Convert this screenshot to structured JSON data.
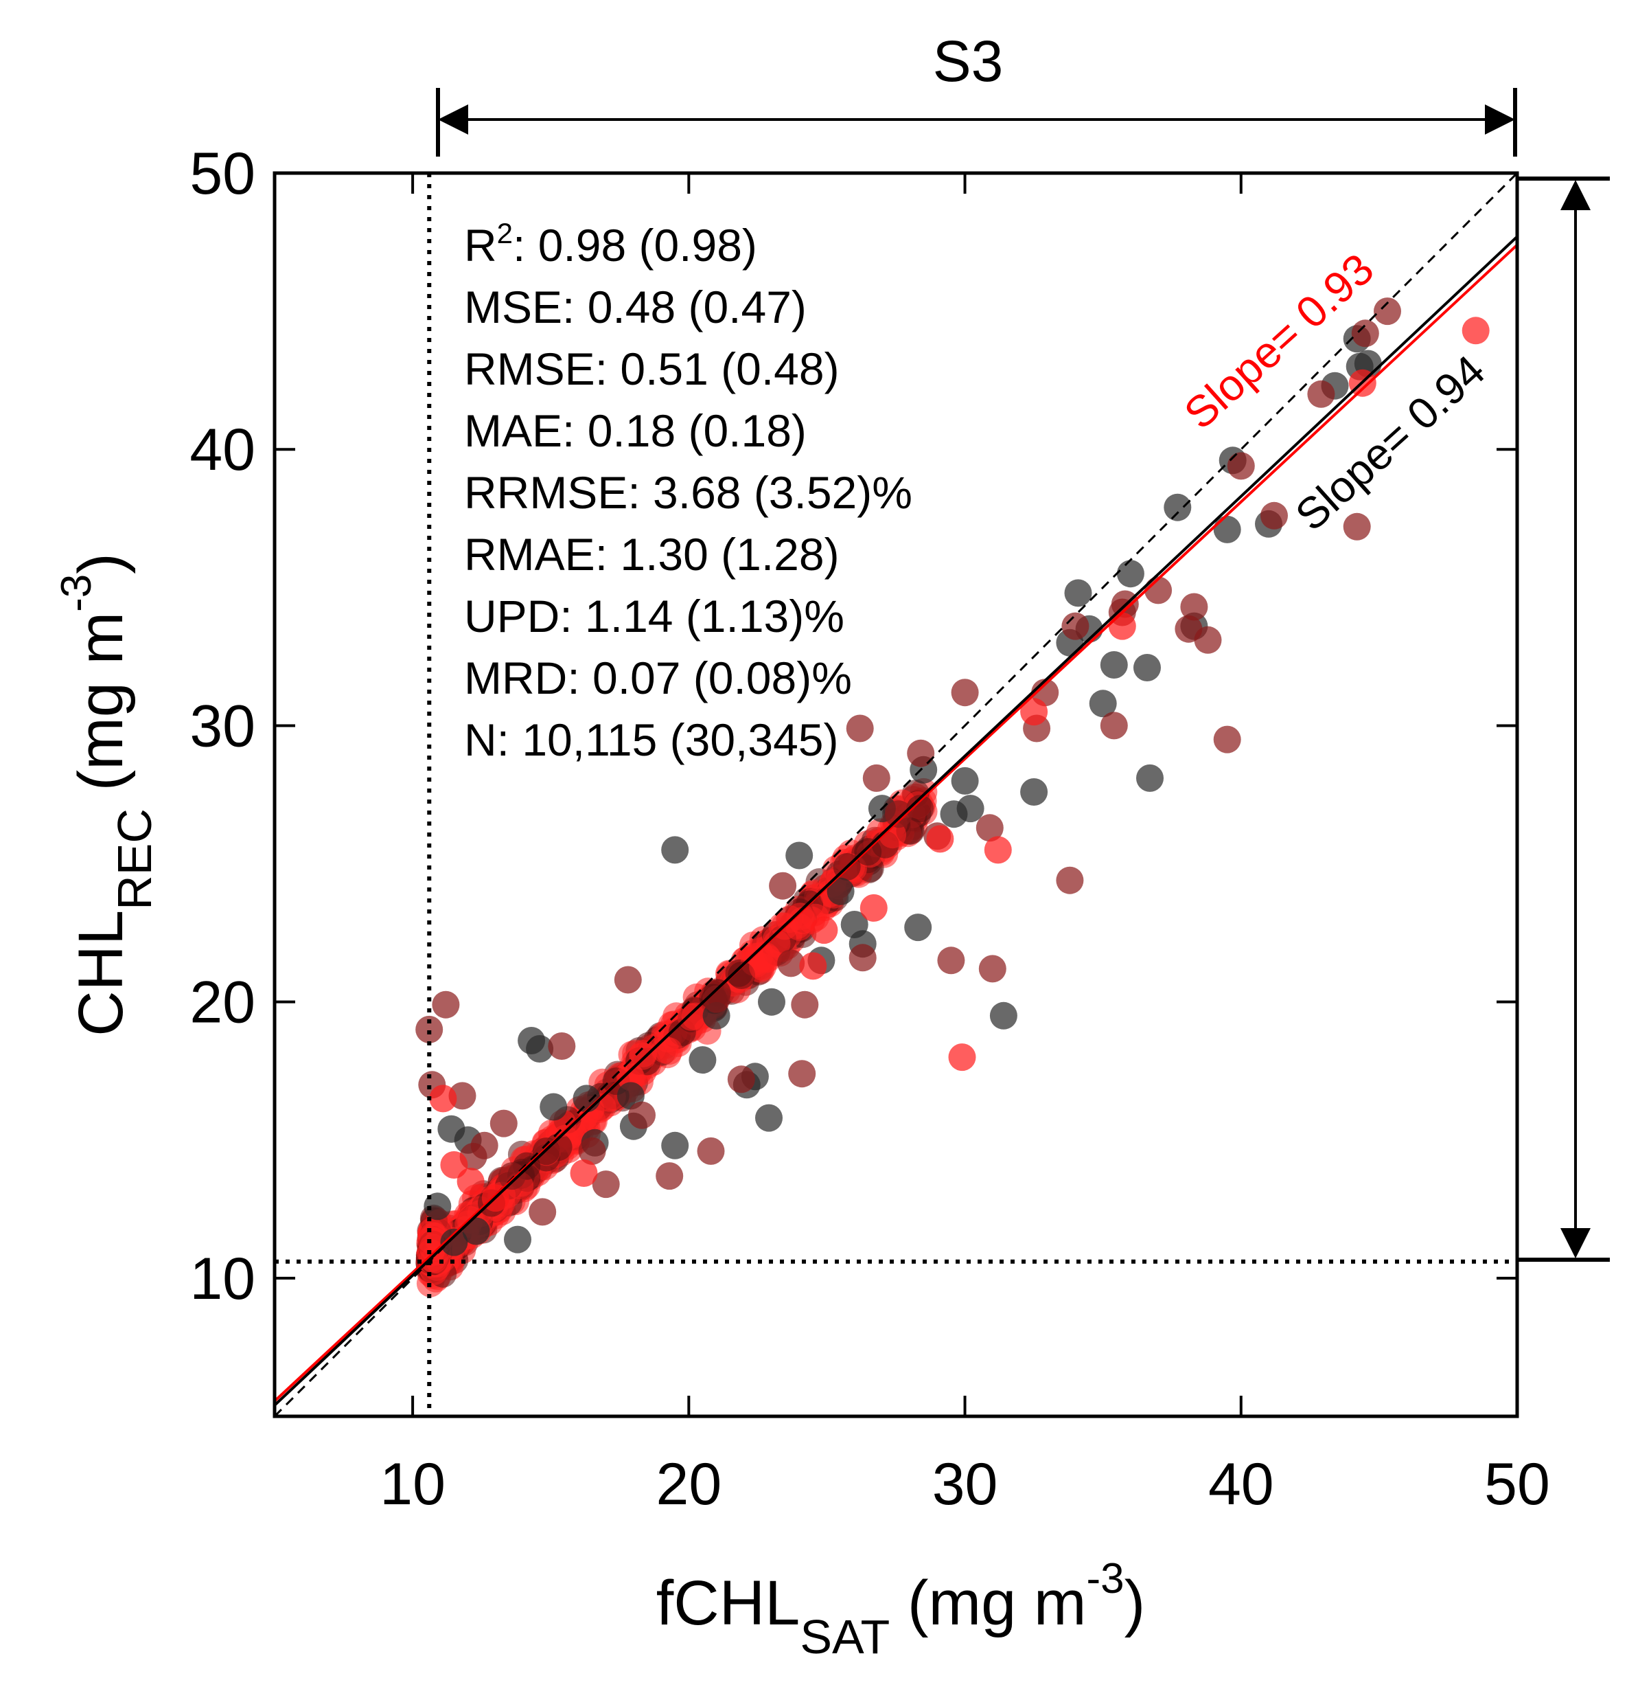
{
  "chart_data": {
    "type": "scatter",
    "top_label": "S3",
    "xlabel": {
      "main": "fCHL",
      "sub": "SAT",
      "units_prefix": " (mg m",
      "units_sup": "-3",
      "units_suffix": ")"
    },
    "ylabel": {
      "main": "CHL",
      "sub": "REC",
      "units_prefix": " (mg m",
      "units_sup": "-3",
      "units_suffix": ")"
    },
    "xlim": [
      5,
      50
    ],
    "ylim": [
      5,
      50
    ],
    "xticks": [
      10,
      20,
      30,
      40,
      50
    ],
    "yticks": [
      10,
      20,
      30,
      40,
      50
    ],
    "tick_labels_x": [
      "10",
      "20",
      "30",
      "40",
      "50"
    ],
    "tick_labels_y": [
      "10",
      "20",
      "30",
      "40",
      "50"
    ],
    "threshold": 10.6,
    "stats": [
      {
        "key": "R",
        "sup": "2",
        "text": ": 0.98 (0.98)"
      },
      {
        "key": "MSE",
        "sup": "",
        "text": ": 0.48 (0.47)"
      },
      {
        "key": "RMSE",
        "sup": "",
        "text": ": 0.51 (0.48)"
      },
      {
        "key": "MAE",
        "sup": "",
        "text": ": 0.18 (0.18)"
      },
      {
        "key": "RRMSE",
        "sup": "",
        "text": ": 3.68 (3.52)%"
      },
      {
        "key": "RMAE",
        "sup": "",
        "text": ": 1.30 (1.28)"
      },
      {
        "key": "UPD",
        "sup": "",
        "text": ": 1.14 (1.13)%"
      },
      {
        "key": "MRD",
        "sup": "",
        "text": ": 0.07 (0.08)%"
      },
      {
        "key": "N",
        "sup": "",
        "text": ":  10,115 (30,345)"
      }
    ],
    "fit_lines": [
      {
        "label": "Slope= 0.93",
        "slope": 0.93,
        "intercept": 0.9,
        "color": "#ff0000"
      },
      {
        "label": "Slope= 0.94",
        "slope": 0.94,
        "intercept": 0.7,
        "color": "#000000"
      }
    ],
    "one_to_one": true,
    "series": [
      {
        "color": "#2a2a2a",
        "points": [
          [
            14.3,
            18.6
          ],
          [
            14.6,
            18.3
          ],
          [
            19.5,
            25.5
          ],
          [
            24.0,
            25.3
          ],
          [
            26.0,
            22.8
          ],
          [
            26.3,
            22.1
          ],
          [
            28.3,
            22.7
          ],
          [
            29.6,
            26.8
          ],
          [
            30.0,
            28.0
          ],
          [
            30.2,
            27.0
          ],
          [
            31.4,
            19.5
          ],
          [
            32.5,
            27.6
          ],
          [
            35.0,
            30.8
          ],
          [
            35.4,
            32.2
          ],
          [
            36.6,
            32.1
          ],
          [
            36.7,
            28.1
          ],
          [
            37.7,
            37.9
          ],
          [
            38.3,
            33.6
          ],
          [
            39.5,
            37.1
          ],
          [
            39.7,
            39.6
          ],
          [
            43.4,
            42.3
          ],
          [
            44.2,
            44.0
          ],
          [
            44.3,
            43.0
          ],
          [
            44.6,
            43.1
          ],
          [
            34.1,
            34.8
          ],
          [
            34.5,
            33.5
          ],
          [
            33.8,
            33.0
          ],
          [
            23.0,
            20.0
          ],
          [
            22.4,
            17.3
          ],
          [
            22.1,
            17.0
          ],
          [
            22.9,
            15.8
          ],
          [
            19.5,
            14.8
          ],
          [
            17.9,
            16.6
          ],
          [
            18.0,
            15.5
          ],
          [
            16.3,
            16.5
          ],
          [
            15.1,
            16.2
          ],
          [
            12.0,
            15.0
          ],
          [
            11.4,
            15.4
          ],
          [
            10.9,
            12.6
          ],
          [
            11.5,
            11.3
          ],
          [
            12.3,
            11.7
          ],
          [
            13.8,
            11.4
          ],
          [
            16.6,
            14.9
          ],
          [
            27.0,
            27.0
          ],
          [
            28.5,
            28.4
          ],
          [
            25.5,
            24.0
          ],
          [
            24.8,
            21.5
          ],
          [
            36.0,
            35.5
          ],
          [
            41.0,
            37.3
          ],
          [
            21.0,
            19.5
          ],
          [
            20.5,
            17.9
          ]
        ]
      },
      {
        "color": "#8a1a1a",
        "points": [
          [
            10.6,
            19.0
          ],
          [
            10.7,
            17.0
          ],
          [
            11.2,
            19.9
          ],
          [
            11.8,
            16.6
          ],
          [
            12.2,
            14.4
          ],
          [
            13.3,
            15.6
          ],
          [
            13.6,
            13.7
          ],
          [
            14.7,
            12.4
          ],
          [
            16.5,
            14.6
          ],
          [
            17.0,
            13.4
          ],
          [
            19.3,
            13.7
          ],
          [
            20.8,
            14.6
          ],
          [
            21.9,
            17.2
          ],
          [
            24.1,
            17.4
          ],
          [
            24.2,
            19.9
          ],
          [
            26.3,
            21.6
          ],
          [
            26.2,
            29.9
          ],
          [
            27.6,
            26.8
          ],
          [
            29.0,
            26.0
          ],
          [
            29.5,
            21.5
          ],
          [
            30.9,
            26.3
          ],
          [
            31.0,
            21.2
          ],
          [
            32.6,
            29.9
          ],
          [
            33.8,
            24.4
          ],
          [
            35.4,
            30.0
          ],
          [
            37.0,
            34.9
          ],
          [
            38.1,
            33.5
          ],
          [
            38.3,
            34.3
          ],
          [
            38.8,
            33.1
          ],
          [
            39.5,
            29.5
          ],
          [
            40.0,
            39.4
          ],
          [
            41.2,
            37.6
          ],
          [
            44.2,
            37.2
          ],
          [
            42.9,
            42.0
          ],
          [
            44.5,
            44.2
          ],
          [
            45.3,
            45.0
          ],
          [
            35.7,
            34.1
          ],
          [
            34.0,
            33.6
          ],
          [
            32.9,
            31.2
          ],
          [
            28.4,
            29.0
          ],
          [
            23.7,
            21.4
          ],
          [
            23.4,
            24.2
          ],
          [
            17.8,
            20.8
          ],
          [
            15.4,
            18.4
          ],
          [
            12.6,
            14.8
          ],
          [
            18.3,
            15.9
          ],
          [
            26.8,
            28.1
          ],
          [
            35.8,
            34.4
          ],
          [
            21.0,
            20.1
          ],
          [
            30.0,
            31.2
          ]
        ]
      },
      {
        "color": "#ff1a1a",
        "points": [
          [
            24.5,
            21.3
          ],
          [
            29.9,
            18.0
          ],
          [
            31.2,
            25.5
          ],
          [
            48.5,
            44.3
          ],
          [
            32.5,
            30.5
          ],
          [
            29.1,
            25.9
          ],
          [
            26.7,
            23.4
          ],
          [
            24.9,
            22.6
          ],
          [
            16.2,
            13.8
          ],
          [
            13.0,
            12.9
          ],
          [
            12.1,
            13.5
          ],
          [
            11.5,
            14.1
          ],
          [
            11.1,
            16.5
          ],
          [
            44.4,
            42.4
          ],
          [
            35.7,
            33.6
          ]
        ]
      }
    ],
    "dense_band": {
      "color": "#ff2020",
      "x_range": [
        10.6,
        28.5
      ],
      "slope": 0.935,
      "intercept": 0.6,
      "spread": 0.55
    }
  }
}
